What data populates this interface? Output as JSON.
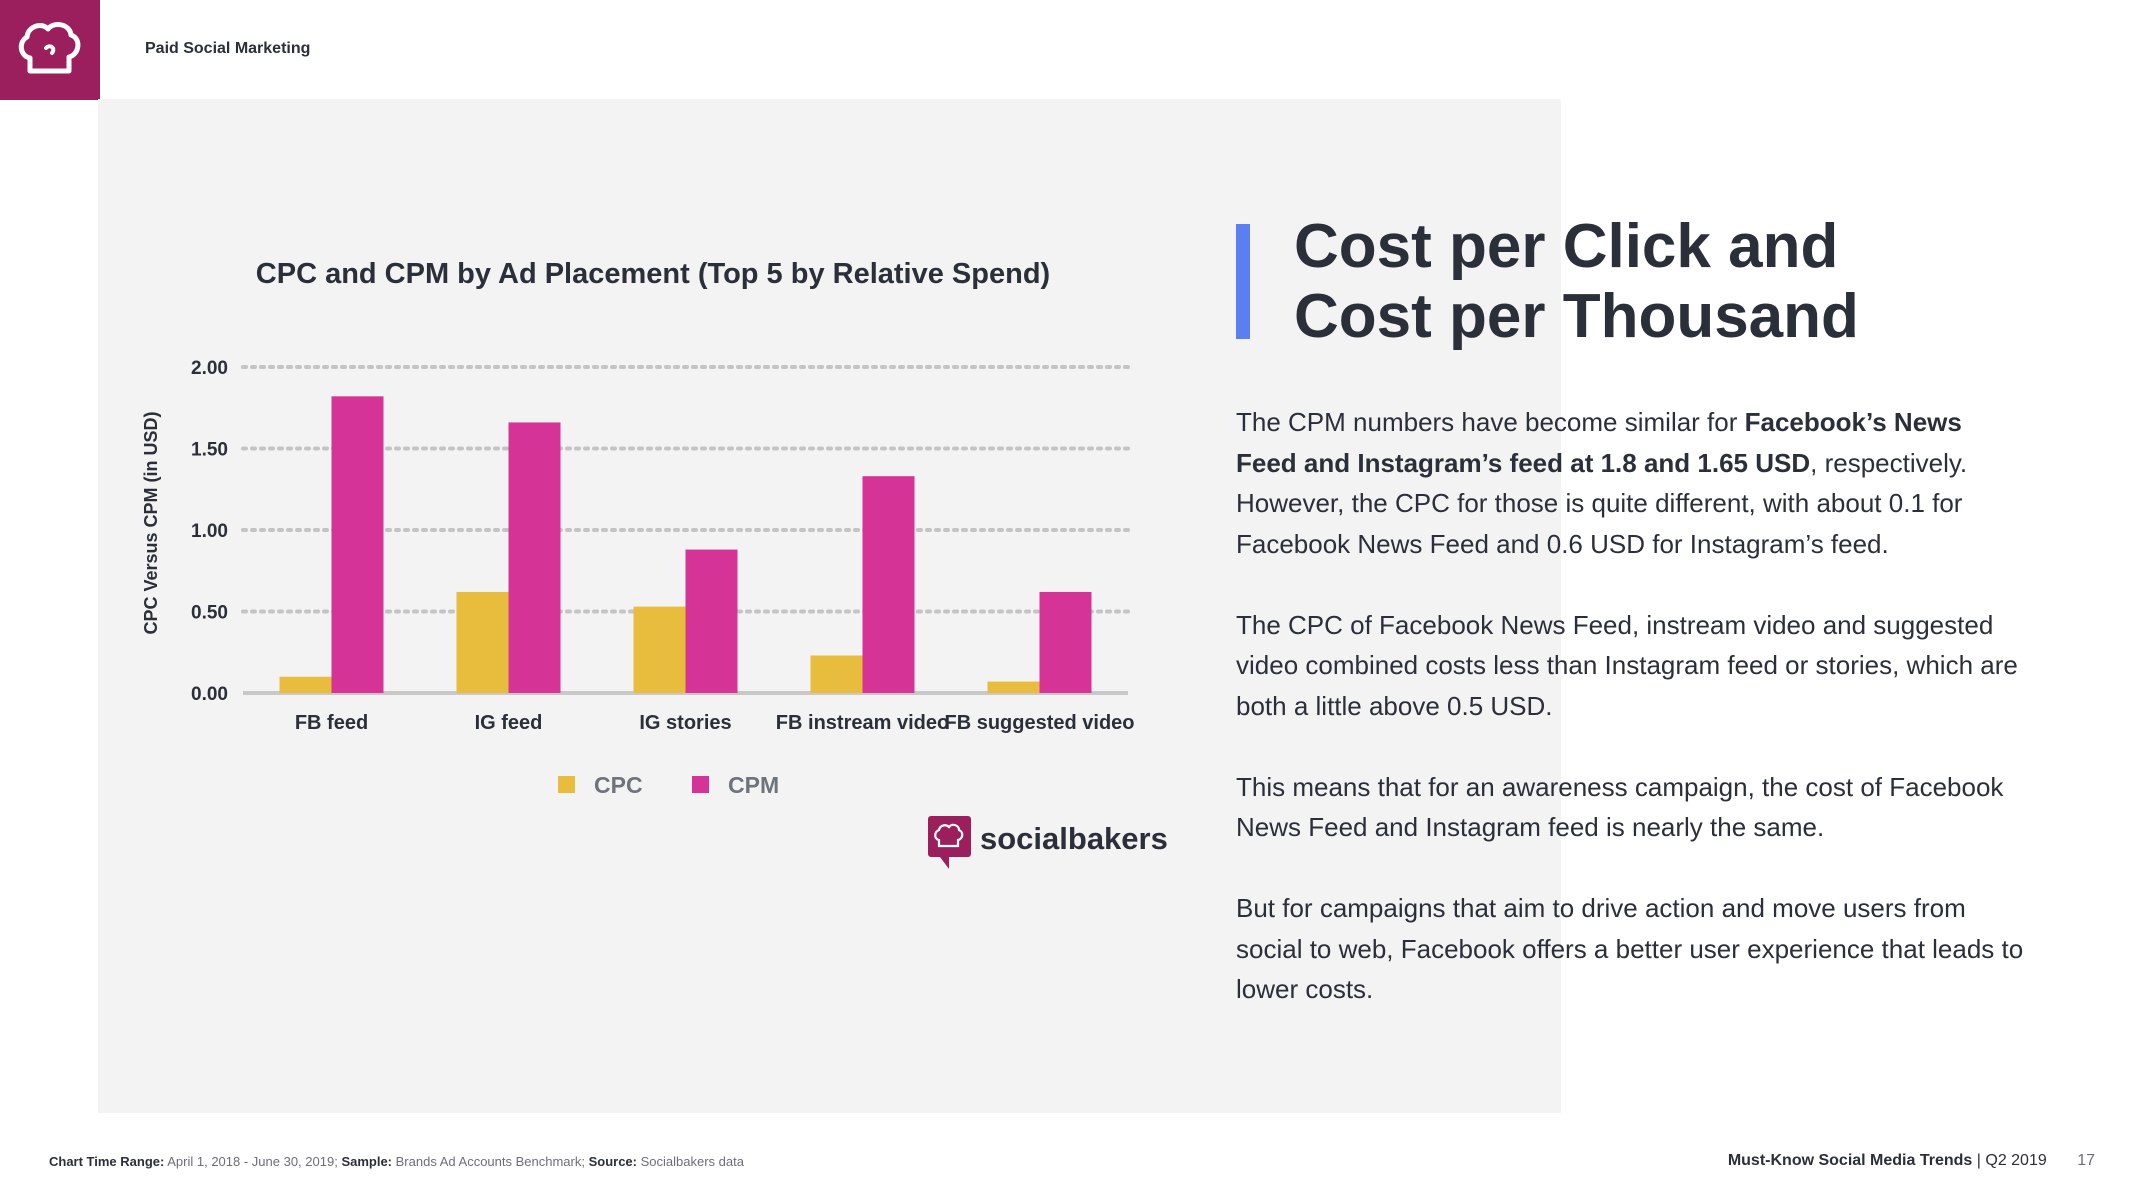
{
  "header": {
    "section_title": "Paid Social Marketing",
    "logo_icon": "chef-hat-icon",
    "brand_color": "#9c1f5d"
  },
  "chart_data": {
    "type": "bar",
    "title": "CPC and CPM by Ad Placement (Top 5 by Relative Spend)",
    "xlabel": "",
    "ylabel": "CPC Versus CPM (in USD)",
    "ylim": [
      0,
      2
    ],
    "yticks": [
      "0.00",
      "0.50",
      "1.00",
      "1.50",
      "2.00"
    ],
    "ytick_values": [
      0,
      0.5,
      1,
      1.5,
      2
    ],
    "grid": true,
    "categories": [
      "FB feed",
      "IG feed",
      "IG stories",
      "FB instream video",
      "FB suggested video"
    ],
    "series": [
      {
        "name": "CPC",
        "color": "#e8bc3c",
        "values": [
          0.1,
          0.62,
          0.53,
          0.23,
          0.07
        ]
      },
      {
        "name": "CPM",
        "color": "#d63396",
        "values": [
          1.82,
          1.66,
          0.88,
          1.33,
          0.62
        ]
      }
    ],
    "legend_position": "bottom"
  },
  "chart_brand": {
    "name": "socialbakers",
    "icon": "chef-hat-icon",
    "color": "#9c1f5d"
  },
  "article": {
    "accent_color": "#5b7ff0",
    "headline_line1": "Cost per Click and",
    "headline_line2": "Cost per Thousand",
    "p1_pre": "The CPM numbers have become similar for ",
    "p1_bold": "Facebook’s News Feed and Instagram’s feed at 1.8 and 1.65 USD",
    "p1_post": ", respectively. However, the CPC for those is quite different, with about 0.1 for Facebook News Feed and 0.6 USD for Instagram’s feed.",
    "p2": "The CPC of Facebook News Feed, instream video and suggested video combined costs less than Instagram feed or stories, which are both a little above 0.5 USD.",
    "p3": "This means that for an awareness campaign, the cost of Facebook News Feed and Instagram feed is nearly the same.",
    "p4": "But for campaigns that aim to drive action and move users from social to web, Facebook offers a better user experience that leads to lower costs."
  },
  "footer": {
    "range_label": "Chart Time Range:",
    "range_value": "April 1, 2018 - June 30, 2019;",
    "sample_label": "Sample:",
    "sample_value": "Brands Ad Accounts Benchmark;",
    "source_label": "Source:",
    "source_value": "Socialbakers data",
    "report_title": "Must-Know Social Media Trends",
    "report_period": "| Q2 2019",
    "page_number": "17"
  }
}
